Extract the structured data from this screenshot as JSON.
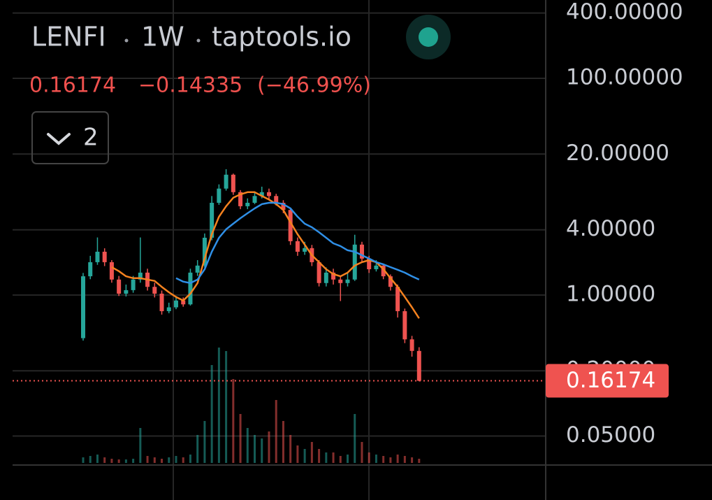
{
  "header": {
    "symbol": "LENFI",
    "interval": "1W",
    "source": "taptools.io",
    "change": "−0.14335",
    "change_pct": "(−46.99%)",
    "indicators": "2"
  },
  "chart_data": {
    "type": "candlestick",
    "log_scale": true,
    "grid": true,
    "up_color": "#26a69a",
    "down_color": "#ef5350",
    "ylim": [
      0.027,
      528
    ],
    "yticks": [
      {
        "value": 400,
        "label": "400.00000"
      },
      {
        "value": 100,
        "label": "100.00000"
      },
      {
        "value": 20,
        "label": "20.00000"
      },
      {
        "value": 4,
        "label": "4.00000"
      },
      {
        "value": 1,
        "label": "1.00000"
      },
      {
        "value": 0.2,
        "label": "0.20000"
      },
      {
        "value": 0.05,
        "label": "0.05000"
      }
    ],
    "open": [
      0.4,
      1.49,
      2.01,
      2.51,
      2.01,
      1.39,
      1.03,
      1.11,
      1.39,
      1.61,
      1.19,
      1.03,
      0.71,
      0.77,
      0.89,
      0.82,
      1.61,
      1.87,
      3.38,
      7.1,
      9.6,
      12.9,
      8.9,
      6.6,
      7.1,
      8.2,
      8.9,
      8.2,
      7.1,
      6.1,
      3.14,
      2.51,
      2.71,
      2.01,
      1.29,
      1.61,
      1.39,
      1.29,
      1.39,
      2.92,
      2.17,
      1.73,
      1.87,
      1.49,
      1.19,
      0.71,
      0.39,
      0.30509
    ],
    "high": [
      1.6,
      2.3,
      3.4,
      2.7,
      2.1,
      1.5,
      1.25,
      1.5,
      3.4,
      1.75,
      1.3,
      1.1,
      0.85,
      0.98,
      0.95,
      1.75,
      2.1,
      3.7,
      8.2,
      10.5,
      14.5,
      13.2,
      9.3,
      7.8,
      8.9,
      10.0,
      9.6,
      8.6,
      7.5,
      6.4,
      3.4,
      3.1,
      2.9,
      2.1,
      1.8,
      1.75,
      1.5,
      1.6,
      3.6,
      3.1,
      2.3,
      2.1,
      1.95,
      1.55,
      1.25,
      0.75,
      0.42,
      0.33
    ],
    "low": [
      0.38,
      1.4,
      1.9,
      1.85,
      1.3,
      0.98,
      0.97,
      1.05,
      1.3,
      1.1,
      0.95,
      0.66,
      0.68,
      0.74,
      0.78,
      0.8,
      1.5,
      1.8,
      3.2,
      6.8,
      9.2,
      8.4,
      6.2,
      6.2,
      6.9,
      7.8,
      7.6,
      6.7,
      5.7,
      2.9,
      2.3,
      2.35,
      1.85,
      1.2,
      1.2,
      1.25,
      0.88,
      1.2,
      1.35,
      2.0,
      1.6,
      1.65,
      1.4,
      1.1,
      0.62,
      0.36,
      0.27,
      0.16
    ],
    "close": [
      1.49,
      2.01,
      2.51,
      2.01,
      1.39,
      1.03,
      1.11,
      1.39,
      1.61,
      1.19,
      1.03,
      0.71,
      0.77,
      0.89,
      0.82,
      1.61,
      1.87,
      3.38,
      7.1,
      9.6,
      12.9,
      8.9,
      6.6,
      7.1,
      8.2,
      8.9,
      8.2,
      7.1,
      6.1,
      3.14,
      2.51,
      2.71,
      2.01,
      1.29,
      1.61,
      1.39,
      1.29,
      1.39,
      2.92,
      2.17,
      1.73,
      1.87,
      1.49,
      1.19,
      0.71,
      0.39,
      0.30509,
      0.16174
    ],
    "volume": [
      8,
      10,
      12,
      8,
      6,
      5,
      5,
      6,
      50,
      10,
      8,
      6,
      8,
      10,
      8,
      12,
      40,
      60,
      140,
      165,
      160,
      120,
      70,
      50,
      40,
      35,
      45,
      90,
      60,
      40,
      25,
      20,
      30,
      20,
      15,
      15,
      10,
      12,
      70,
      30,
      15,
      12,
      10,
      8,
      12,
      10,
      8,
      6
    ],
    "moving_averages": [
      {
        "color": "#f5821f",
        "values": [
          null,
          null,
          null,
          null,
          1.81,
          1.66,
          1.49,
          1.43,
          1.43,
          1.39,
          1.35,
          1.19,
          1.06,
          0.96,
          0.89,
          1.03,
          1.29,
          2.17,
          3.64,
          5.28,
          6.6,
          7.9,
          8.5,
          8.9,
          8.9,
          8.2,
          7.6,
          6.9,
          6.1,
          4.69,
          3.64,
          2.92,
          2.33,
          2.01,
          1.73,
          1.56,
          1.49,
          1.61,
          1.87,
          2.01,
          2.1,
          2.01,
          1.73,
          1.43,
          1.19,
          0.96,
          0.77,
          0.61
        ]
      },
      {
        "color": "#2f8fe6",
        "values": [
          null,
          null,
          null,
          null,
          null,
          null,
          null,
          null,
          null,
          null,
          null,
          null,
          null,
          1.43,
          1.33,
          1.29,
          1.39,
          1.73,
          2.51,
          3.38,
          4.04,
          4.55,
          5.12,
          5.69,
          6.3,
          6.9,
          7.1,
          7.1,
          6.9,
          6.3,
          5.28,
          4.55,
          4.22,
          3.8,
          3.38,
          3.0,
          2.83,
          2.59,
          2.51,
          2.33,
          2.17,
          2.01,
          1.92,
          1.81,
          1.71,
          1.61,
          1.49,
          1.39
        ]
      }
    ]
  }
}
